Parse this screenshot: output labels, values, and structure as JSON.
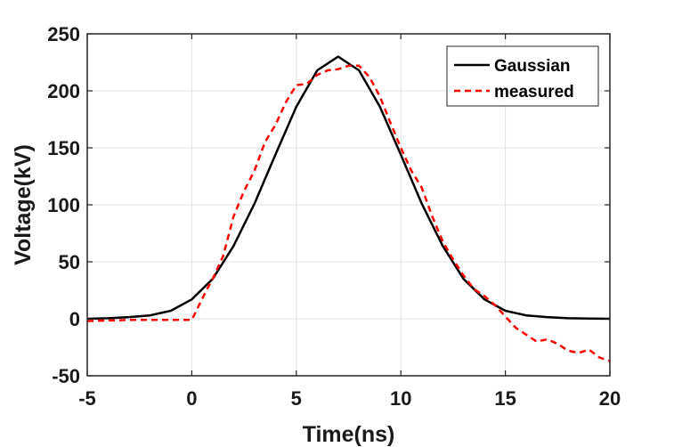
{
  "chart_data": {
    "type": "line",
    "xlabel": "Time(ns)",
    "ylabel": "Voltage(kV)",
    "xlim": [
      -5,
      20
    ],
    "ylim": [
      -50,
      250
    ],
    "xticks": [
      -5,
      0,
      5,
      10,
      15,
      20
    ],
    "yticks": [
      -50,
      0,
      50,
      100,
      150,
      200,
      250
    ],
    "xtick_labels": [
      "-5",
      "0",
      "5",
      "10",
      "15",
      "20"
    ],
    "ytick_labels": [
      "-50",
      "0",
      "50",
      "100",
      "150",
      "200",
      "250"
    ],
    "grid": true,
    "legend_position": "top-right",
    "series": [
      {
        "name": "Gaussian",
        "color": "#000000",
        "style": "solid",
        "x": [
          -5,
          -4,
          -3,
          -2,
          -1,
          0,
          1,
          2,
          3,
          4,
          5,
          6,
          7,
          8,
          9,
          10,
          11,
          12,
          13,
          14,
          15,
          16,
          17,
          18,
          19,
          20
        ],
        "y": [
          0,
          0.5,
          1.5,
          3,
          7,
          17,
          35,
          64,
          101,
          144,
          186,
          218,
          230,
          218,
          186,
          144,
          101,
          64,
          35,
          17,
          7,
          3,
          1.5,
          0.5,
          0.2,
          0
        ]
      },
      {
        "name": "measured",
        "color": "#ff0000",
        "style": "dashed",
        "x": [
          -5,
          -4,
          -3,
          -2,
          -1,
          0,
          0.3,
          0.7,
          1,
          1.5,
          2,
          2.5,
          3,
          3.5,
          4,
          4.5,
          5,
          5.5,
          6,
          6.5,
          7,
          7.5,
          8,
          8.5,
          9,
          9.5,
          10,
          10.5,
          11,
          11.5,
          12,
          12.5,
          13,
          13.5,
          14,
          14.5,
          15,
          15.5,
          16,
          16.5,
          17,
          17.5,
          18,
          18.5,
          19,
          19.5,
          20
        ],
        "y": [
          -2,
          -1.5,
          -1,
          -1,
          -1,
          -1,
          10,
          25,
          35,
          55,
          90,
          112,
          130,
          155,
          170,
          190,
          205,
          206,
          214,
          218,
          219,
          222,
          222,
          212,
          195,
          172,
          150,
          130,
          115,
          90,
          68,
          52,
          38,
          26,
          20,
          12,
          2,
          -8,
          -14,
          -20,
          -18,
          -22,
          -28,
          -30,
          -27,
          -34,
          -37
        ]
      }
    ]
  }
}
